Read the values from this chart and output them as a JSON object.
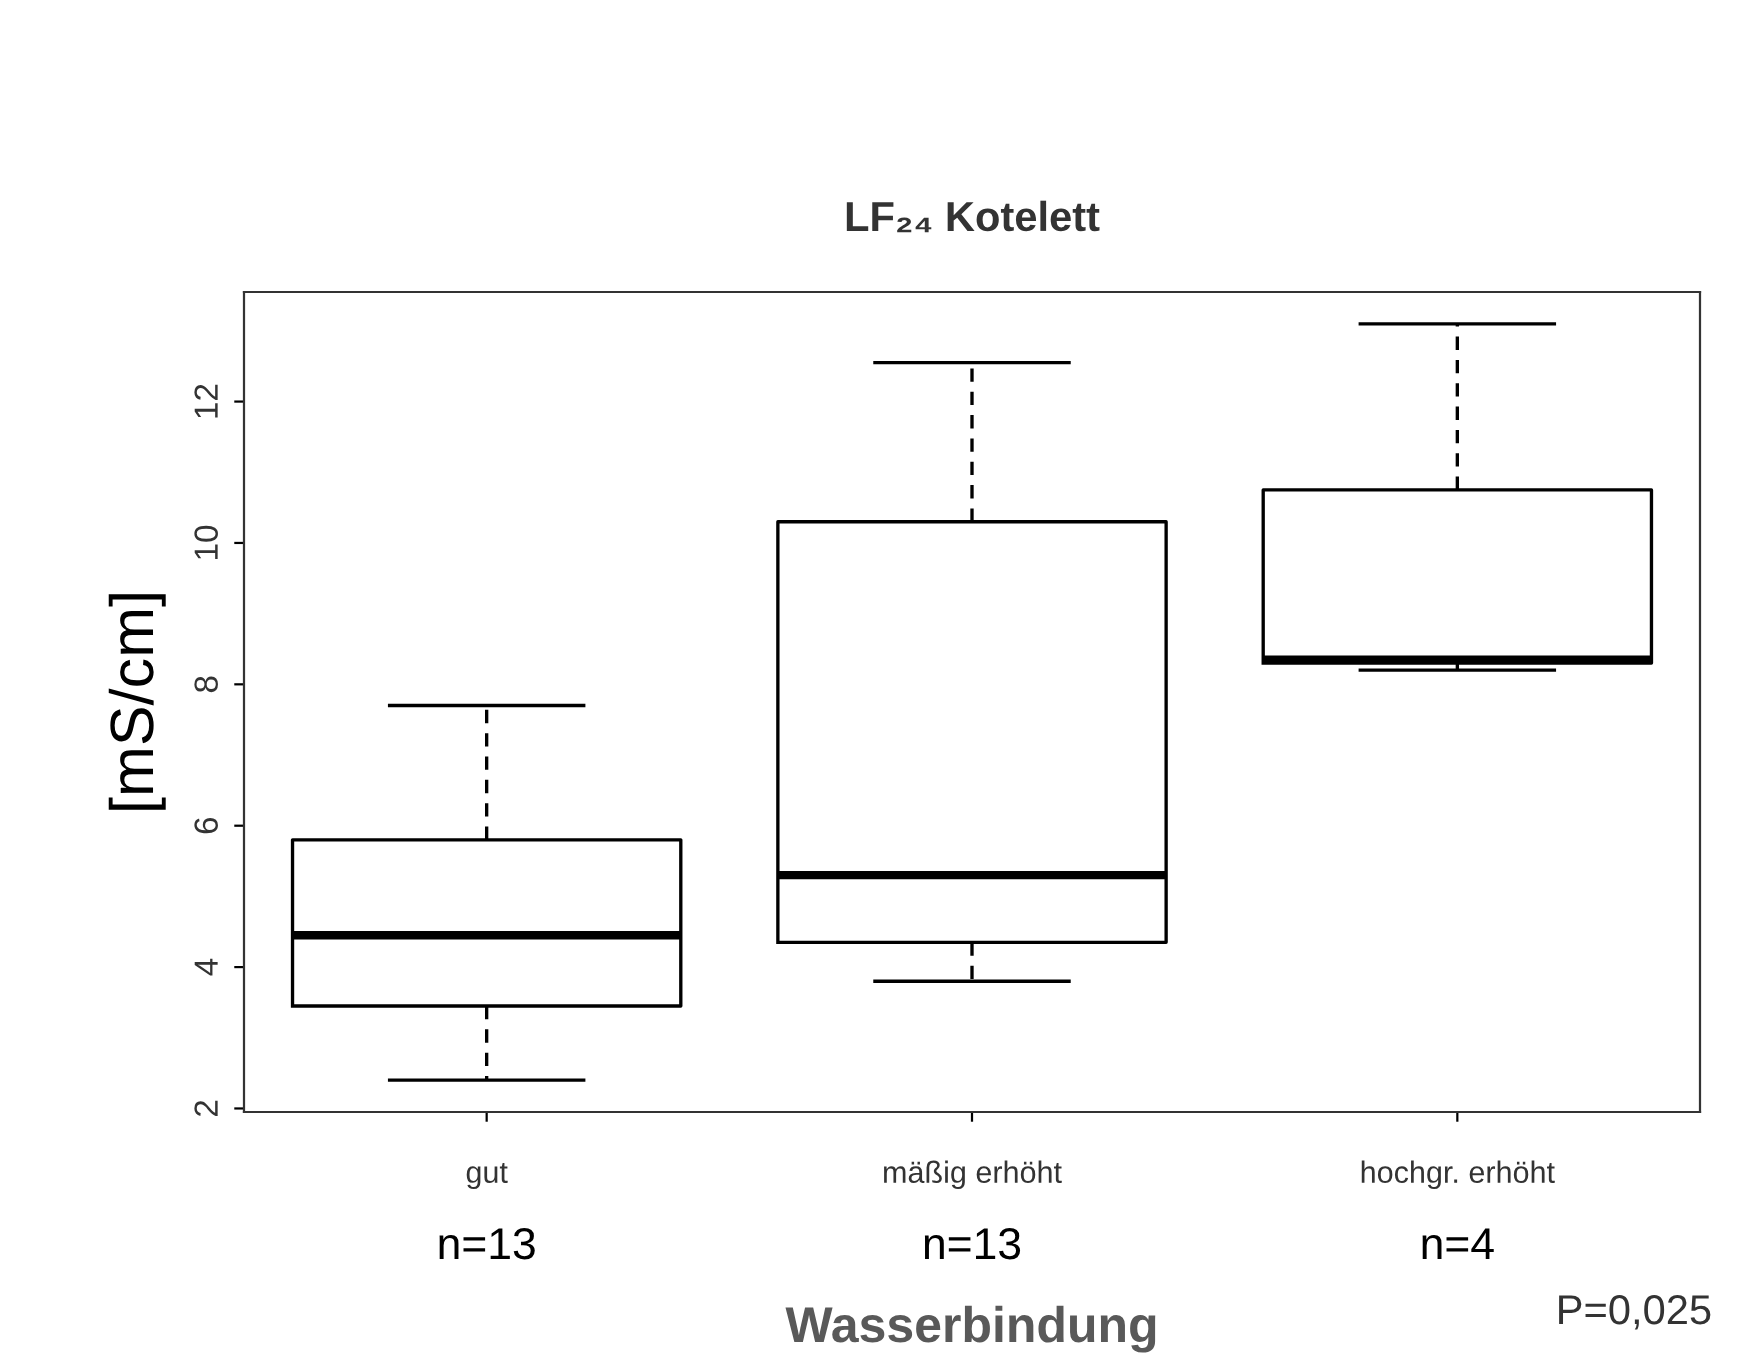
{
  "chart_data": {
    "type": "box",
    "title": "LF₂₄ Kotelett",
    "xlabel": "Wasserbindung",
    "ylabel": "[mS/cm]",
    "categories": [
      "gut",
      "mäßig erhöht",
      "hochgr. erhöht"
    ],
    "boxes": [
      {
        "low": 2.4,
        "q1": 3.45,
        "median": 4.45,
        "q3": 5.8,
        "high": 7.7
      },
      {
        "low": 3.8,
        "q1": 4.35,
        "median": 5.3,
        "q3": 10.3,
        "high": 12.55
      },
      {
        "low": 8.2,
        "q1": 8.3,
        "median": 8.35,
        "q3": 10.75,
        "high": 13.1
      }
    ],
    "ylim": [
      1.95,
      13.55
    ],
    "yticks": [
      2,
      4,
      6,
      8,
      10,
      12
    ],
    "grid": false,
    "legend": false,
    "annotations": [
      "n=13",
      "n=13",
      "n=4",
      "P=0,025"
    ]
  }
}
